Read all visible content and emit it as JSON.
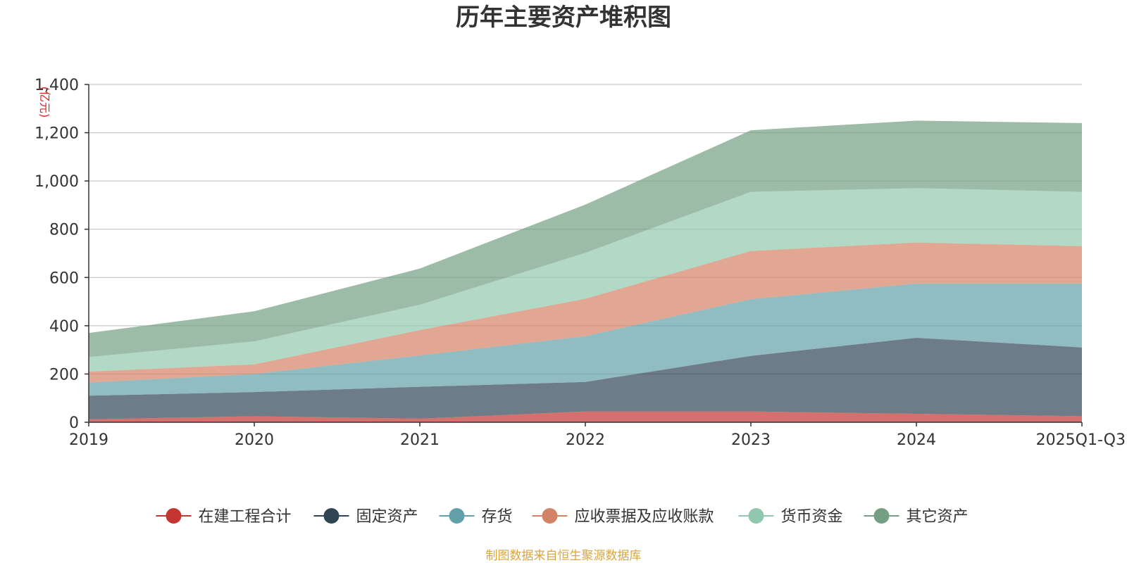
{
  "chart_data": {
    "type": "area",
    "stacked": true,
    "title": "历年主要资产堆积图",
    "unit_label": "(亿元)",
    "categories": [
      "2019",
      "2020",
      "2021",
      "2022",
      "2023",
      "2024",
      "2025Q1-Q3"
    ],
    "ylim": [
      0,
      1400
    ],
    "yticks": [
      0,
      200,
      400,
      600,
      800,
      1000,
      1200,
      1400
    ],
    "ytick_labels": [
      "0",
      "200",
      "400",
      "600",
      "800",
      "1,000",
      "1,200",
      "1,400"
    ],
    "grid": true,
    "series": [
      {
        "name": "在建工程合计",
        "color": "#c23531",
        "values": [
          12,
          25,
          15,
          45,
          45,
          35,
          25
        ]
      },
      {
        "name": "固定资产",
        "color": "#2f4554",
        "values": [
          98,
          100,
          132,
          122,
          230,
          315,
          285
        ]
      },
      {
        "name": "存货",
        "color": "#61a0a8",
        "values": [
          55,
          75,
          130,
          190,
          235,
          225,
          265
        ]
      },
      {
        "name": "应收票据及应收账款",
        "color": "#d48265",
        "values": [
          45,
          40,
          105,
          155,
          200,
          170,
          155
        ]
      },
      {
        "name": "货币资金",
        "color": "#91c7ae",
        "values": [
          60,
          95,
          105,
          190,
          245,
          225,
          225
        ]
      },
      {
        "name": "其它资产",
        "color": "#749f83",
        "values": [
          100,
          125,
          150,
          200,
          255,
          280,
          285
        ]
      }
    ],
    "legend_position": "bottom",
    "source_note": "制图数据来自恒生聚源数据库"
  }
}
